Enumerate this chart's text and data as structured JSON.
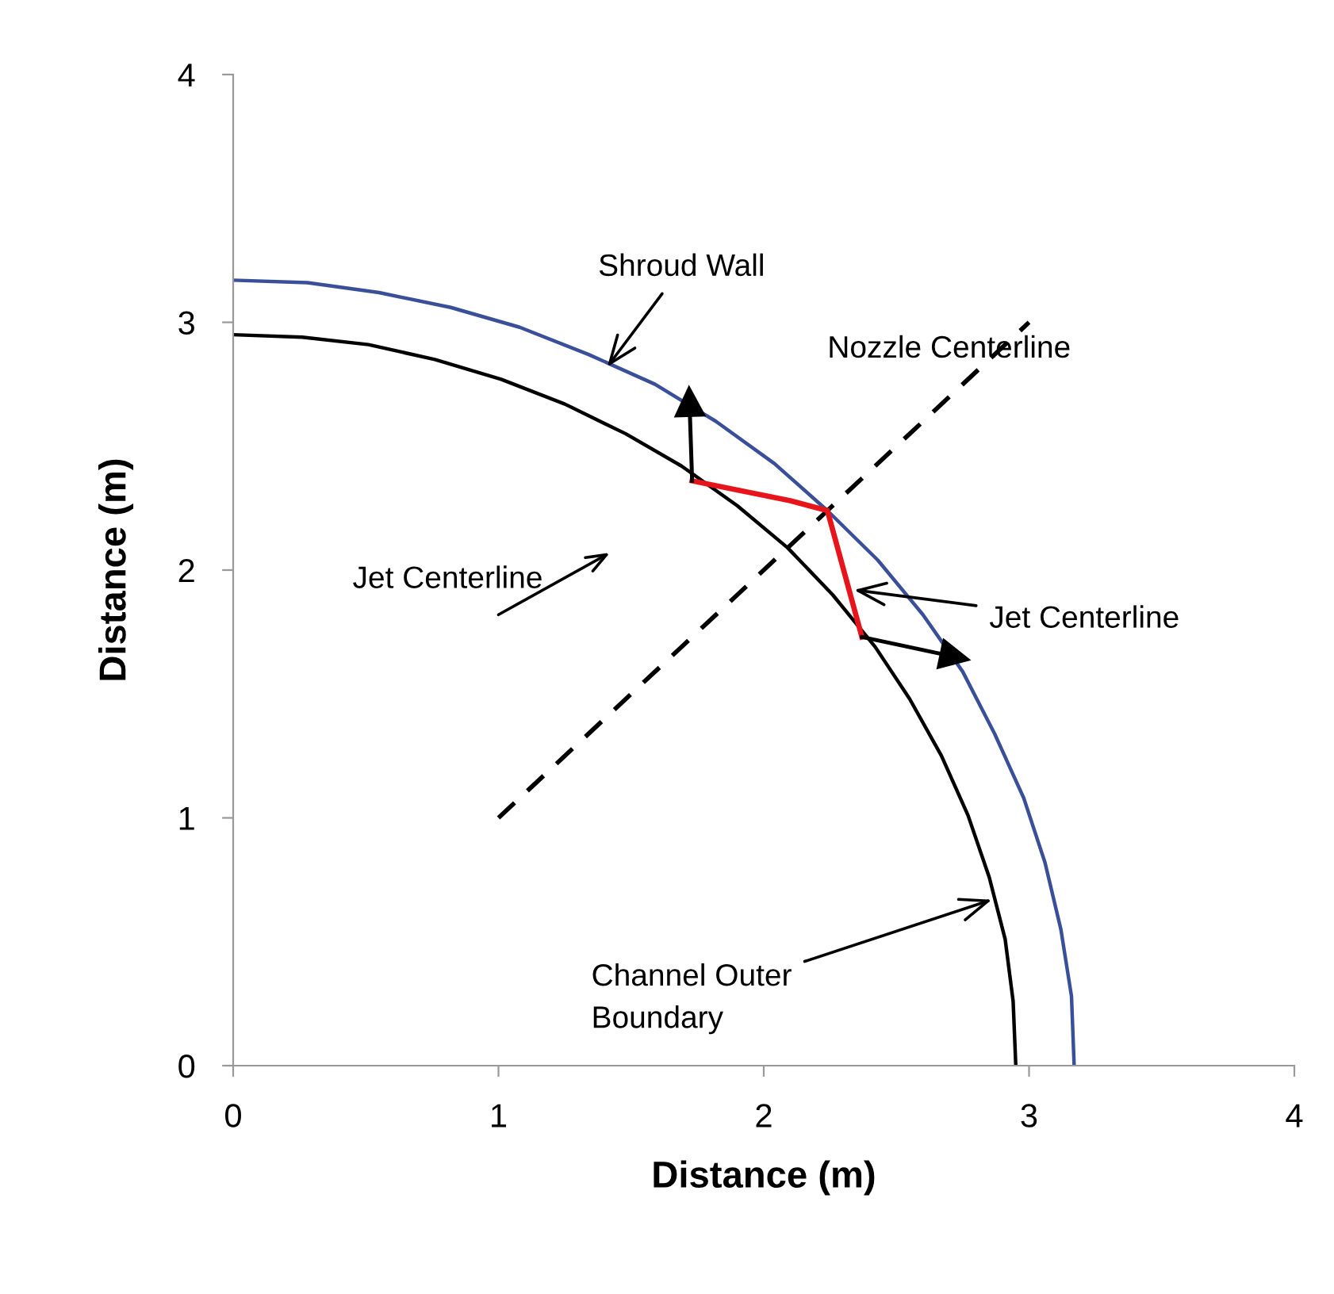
{
  "chart_data": {
    "type": "line",
    "xlabel": "Distance (m)",
    "ylabel": "Distance (m)",
    "xlim": [
      0,
      4
    ],
    "ylim": [
      0,
      4
    ],
    "xticks": [
      0,
      1,
      2,
      3,
      4
    ],
    "yticks": [
      0,
      1,
      2,
      3,
      4
    ],
    "grid": false,
    "series": [
      {
        "color": "#3a4f9a",
        "x": [
          0,
          0.28,
          0.55,
          0.82,
          1.08,
          1.34,
          1.59,
          1.82,
          2.04,
          2.24,
          2.43,
          2.6,
          2.75,
          2.87,
          2.98,
          3.06,
          3.12,
          3.16,
          3.17
        ],
        "values": [
          3.17,
          3.16,
          3.12,
          3.06,
          2.98,
          2.87,
          2.75,
          2.6,
          2.43,
          2.24,
          2.04,
          1.82,
          1.59,
          1.34,
          1.08,
          0.82,
          0.55,
          0.28,
          0
        ]
      },
      {
        "color": "#000000",
        "x": [
          0,
          0.26,
          0.51,
          0.76,
          1.01,
          1.25,
          1.48,
          1.69,
          1.9,
          2.09,
          2.26,
          2.42,
          2.55,
          2.67,
          2.77,
          2.85,
          2.91,
          2.94,
          2.95
        ],
        "values": [
          2.95,
          2.94,
          2.91,
          2.85,
          2.77,
          2.67,
          2.55,
          2.42,
          2.26,
          2.09,
          1.9,
          1.69,
          1.48,
          1.25,
          1.01,
          0.76,
          0.51,
          0.26,
          0
        ]
      },
      {
        "color": "#000000",
        "line_style": "dashed",
        "x": [
          1,
          3
        ],
        "values": [
          1,
          3
        ]
      },
      {
        "color": "#e8141b",
        "x": [
          1.73,
          2.1,
          2.24,
          2.37
        ],
        "values": [
          2.36,
          2.28,
          2.24,
          1.73
        ]
      },
      {
        "color": "#000000",
        "marker": "triangle",
        "x": [
          1.73,
          1.72
        ],
        "values": [
          2.36,
          2.68
        ]
      },
      {
        "color": "#000000",
        "marker": "triangle",
        "x": [
          2.37,
          2.72
        ],
        "values": [
          1.73,
          1.65
        ]
      }
    ],
    "annotations": [
      {
        "text": "Shroud Wall",
        "x": 1.41,
        "y": 2.82
      },
      "Nozzle Centerline",
      "Jet Centerline",
      {
        "text": "Jet Centerline",
        "x": 2.34,
        "y": 1.92
      },
      {
        "text": "Channel Outer\nBoundary",
        "x": 2.86,
        "y": 0.67
      }
    ]
  }
}
